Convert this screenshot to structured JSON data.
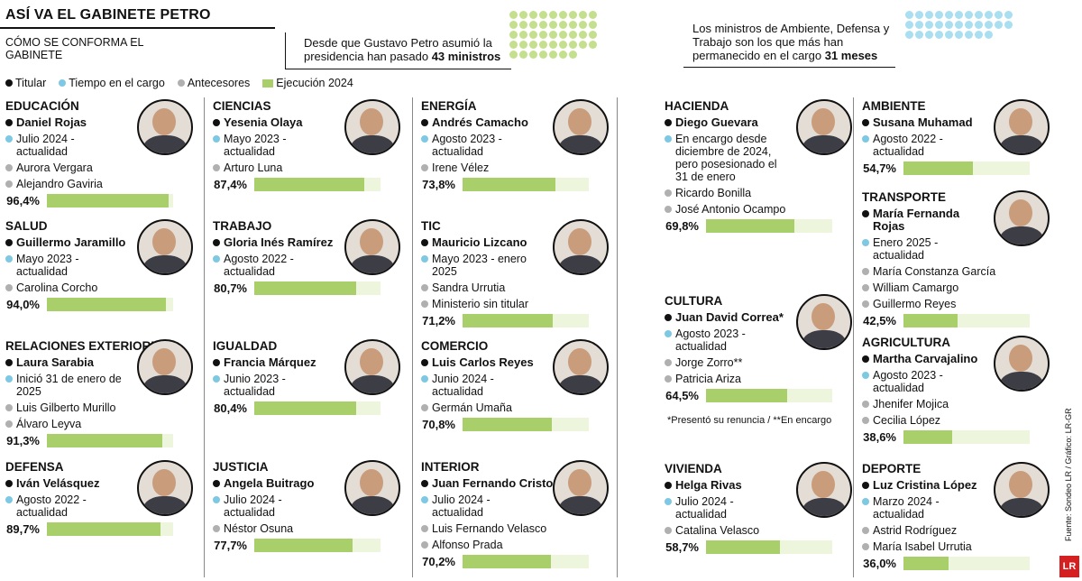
{
  "header": {
    "title": "ASÍ VA EL GABINETE PETRO",
    "subtitle": "CÓMO SE CONFORMA EL GABINETE",
    "info1_prefix": "Desde que Gustavo Petro asumió la presidencia han pasado",
    "info1_bold": "43 ministros",
    "info1_count": 43,
    "info2_prefix": "Los ministros de Ambiente, Defensa y Trabajo son los que más han permanecido en el cargo",
    "info2_bold": "31 meses",
    "info2_count": 31
  },
  "legend": {
    "titular": "Titular",
    "tiempo": "Tiempo en el cargo",
    "antecesores": "Antecesores",
    "ejecucion": "Ejecución 2024"
  },
  "colors": {
    "titular": "#111111",
    "tiempo": "#7ec8e3",
    "antecesor": "#b0b0b0",
    "ejecucion": "#a9cf6b",
    "ejecucion_bg": "#eef5dd"
  },
  "ministries": [
    {
      "name": "EDUCACIÓN",
      "titular": "Daniel Rojas",
      "tiempo": "Julio 2024 - actualidad",
      "antecesores": [
        "Aurora Vergara",
        "Alejandro Gaviria"
      ],
      "ejecucion_label": "96,4%",
      "ejecucion": 96.4,
      "icon": "portrait-icon"
    },
    {
      "name": "SALUD",
      "titular": "Guillermo Jaramillo",
      "tiempo": "Mayo 2023 - actualidad",
      "antecesores": [
        "Carolina Corcho"
      ],
      "ejecucion_label": "94,0%",
      "ejecucion": 94.0,
      "icon": "portrait-icon"
    },
    {
      "name": "RELACIONES EXTERIORES",
      "titular": "Laura Sarabia",
      "tiempo": "Inició 31 de enero de 2025",
      "antecesores": [
        "Luis Gilberto Murillo",
        "Álvaro Leyva"
      ],
      "ejecucion_label": "91,3%",
      "ejecucion": 91.3,
      "icon": "portrait-icon"
    },
    {
      "name": "DEFENSA",
      "titular": "Iván Velásquez",
      "tiempo": "Agosto 2022 - actualidad",
      "antecesores": [],
      "ejecucion_label": "89,7%",
      "ejecucion": 89.7,
      "icon": "portrait-icon"
    },
    {
      "name": "CIENCIAS",
      "titular": "Yesenia Olaya",
      "tiempo": "Mayo 2023 - actualidad",
      "antecesores": [
        "Arturo Luna"
      ],
      "ejecucion_label": "87,4%",
      "ejecucion": 87.4,
      "icon": "portrait-icon"
    },
    {
      "name": "TRABAJO",
      "titular": "Gloria Inés Ramírez",
      "tiempo": "Agosto 2022 - actualidad",
      "antecesores": [],
      "ejecucion_label": "80,7%",
      "ejecucion": 80.7,
      "icon": "portrait-icon"
    },
    {
      "name": "IGUALDAD",
      "titular": "Francia Márquez",
      "tiempo": "Junio 2023 - actualidad",
      "antecesores": [],
      "ejecucion_label": "80,4%",
      "ejecucion": 80.4,
      "icon": "portrait-icon"
    },
    {
      "name": "JUSTICIA",
      "titular": "Angela Buitrago",
      "tiempo": "Julio 2024 - actualidad",
      "antecesores": [
        "Néstor Osuna"
      ],
      "ejecucion_label": "77,7%",
      "ejecucion": 77.7,
      "icon": "portrait-icon"
    },
    {
      "name": "ENERGÍA",
      "titular": "Andrés Camacho",
      "tiempo": "Agosto 2023 - actualidad",
      "antecesores": [
        "Irene Vélez"
      ],
      "ejecucion_label": "73,8%",
      "ejecucion": 73.8,
      "icon": "portrait-icon"
    },
    {
      "name": "TIC",
      "titular": "Mauricio Lizcano",
      "tiempo": "Mayo 2023 - enero 2025",
      "antecesores": [
        "Sandra Urrutia",
        "Ministerio sin titular"
      ],
      "ejecucion_label": "71,2%",
      "ejecucion": 71.2,
      "icon": "portrait-icon"
    },
    {
      "name": "COMERCIO",
      "titular": "Luis Carlos Reyes",
      "tiempo": "Junio 2024 - actualidad",
      "antecesores": [
        "Germán Umaña"
      ],
      "ejecucion_label": "70,8%",
      "ejecucion": 70.8,
      "icon": "portrait-icon"
    },
    {
      "name": "INTERIOR",
      "titular": "Juan Fernando Cristo",
      "tiempo": "Julio 2024 - actualidad",
      "antecesores": [
        "Luis Fernando Velasco",
        "Alfonso Prada"
      ],
      "ejecucion_label": "70,2%",
      "ejecucion": 70.2,
      "icon": "portrait-icon"
    },
    {
      "name": "HACIENDA",
      "titular": "Diego Guevara",
      "tiempo": "En encargo desde diciembre de 2024, pero posesionado el 31 de enero",
      "antecesores": [
        "Ricardo Bonilla",
        "José Antonio Ocampo"
      ],
      "ejecucion_label": "69,8%",
      "ejecucion": 69.8,
      "icon": "portrait-icon"
    },
    {
      "name": "CULTURA",
      "titular": "Juan David Correa*",
      "tiempo": "Agosto 2023 - actualidad",
      "antecesores": [
        "Jorge Zorro**",
        "Patricia Ariza"
      ],
      "ejecucion_label": "64,5%",
      "ejecucion": 64.5,
      "icon": "portrait-icon"
    },
    {
      "name": "VIVIENDA",
      "titular": "Helga Rivas",
      "tiempo": "Julio 2024 - actualidad",
      "antecesores": [
        "Catalina Velasco"
      ],
      "ejecucion_label": "58,7%",
      "ejecucion": 58.7,
      "icon": "portrait-icon"
    },
    {
      "name": "AMBIENTE",
      "titular": "Susana Muhamad",
      "tiempo": "Agosto 2022 - actualidad",
      "antecesores": [],
      "ejecucion_label": "54,7%",
      "ejecucion": 54.7,
      "icon": "portrait-icon"
    },
    {
      "name": "TRANSPORTE",
      "titular": "María Fernanda Rojas",
      "tiempo": "Enero 2025 - actualidad",
      "antecesores": [
        "María Constanza García",
        "William Camargo",
        "Guillermo Reyes"
      ],
      "ejecucion_label": "42,5%",
      "ejecucion": 42.5,
      "icon": "portrait-icon"
    },
    {
      "name": "AGRICULTURA",
      "titular": "Martha Carvajalino",
      "tiempo": "Agosto 2023 - actualidad",
      "antecesores": [
        "Jhenifer Mojica",
        "Cecilia López"
      ],
      "ejecucion_label": "38,6%",
      "ejecucion": 38.6,
      "icon": "portrait-icon"
    },
    {
      "name": "DEPORTE",
      "titular": "Luz Cristina López",
      "tiempo": "Marzo 2024 - actualidad",
      "antecesores": [
        "Astrid Rodríguez",
        "María Isabel Urrutia"
      ],
      "ejecucion_label": "36,0%",
      "ejecucion": 36.0,
      "icon": "portrait-icon"
    }
  ],
  "note": "*Presentó su renuncia / **En encargo",
  "source": "Fuente: Sondeo LR / Gráfico: LR-GR",
  "logo": "LR"
}
